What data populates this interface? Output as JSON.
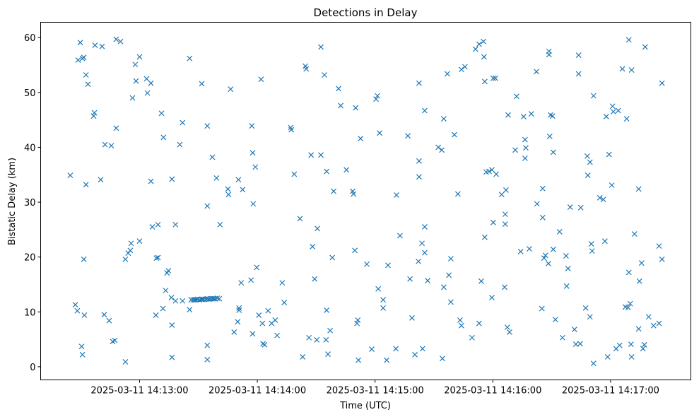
{
  "chart_data": {
    "type": "scatter",
    "title": "Detections in Delay",
    "xlabel": "Time (UTC)",
    "ylabel": "Bistatic Delay (km)",
    "x_unit": "seconds relative to 2025-03-11 14:13:00",
    "xlim": [
      -50.4,
      280.9
    ],
    "ylim": [
      -2.4,
      62.8
    ],
    "grid": false,
    "marker": "x",
    "color": "#1f77b4",
    "x_ticks": [
      {
        "value": 0,
        "label": "2025-03-11 14:13:00"
      },
      {
        "value": 60,
        "label": "2025-03-11 14:14:00"
      },
      {
        "value": 120,
        "label": "2025-03-11 14:15:00"
      },
      {
        "value": 180,
        "label": "2025-03-11 14:16:00"
      },
      {
        "value": 240,
        "label": "2025-03-11 14:17:00"
      }
    ],
    "y_ticks": [
      {
        "value": 0,
        "label": "0"
      },
      {
        "value": 10,
        "label": "10"
      },
      {
        "value": 20,
        "label": "20"
      },
      {
        "value": 30,
        "label": "30"
      },
      {
        "value": 40,
        "label": "40"
      },
      {
        "value": 50,
        "label": "50"
      },
      {
        "value": 60,
        "label": "60"
      }
    ],
    "points": [
      [
        -35.3,
        34.9
      ],
      [
        -32.7,
        11.3
      ],
      [
        -31.7,
        10.2
      ],
      [
        -30.2,
        59.1
      ],
      [
        -31.3,
        55.9
      ],
      [
        -29.1,
        56.2
      ],
      [
        -28.4,
        56.4
      ],
      [
        -29.5,
        3.7
      ],
      [
        -29.1,
        2.2
      ],
      [
        -28.1,
        9.4
      ],
      [
        -28.4,
        19.6
      ],
      [
        -27.3,
        53.2
      ],
      [
        -27.3,
        33.2
      ],
      [
        -26.3,
        51.5
      ],
      [
        -23.4,
        45.7
      ],
      [
        -23.0,
        46.3
      ],
      [
        -22.7,
        58.6
      ],
      [
        -19.8,
        34.1
      ],
      [
        -19.1,
        58.4
      ],
      [
        -18.0,
        9.5
      ],
      [
        -17.6,
        40.5
      ],
      [
        -15.5,
        8.4
      ],
      [
        -14.4,
        40.3
      ],
      [
        -13.7,
        4.6
      ],
      [
        -12.6,
        4.8
      ],
      [
        -11.9,
        43.5
      ],
      [
        -11.9,
        59.7
      ],
      [
        -9.7,
        59.3
      ],
      [
        -7.2,
        0.9
      ],
      [
        -7.2,
        19.6
      ],
      [
        -5.8,
        20.7
      ],
      [
        -4.7,
        21.2
      ],
      [
        -4.3,
        22.5
      ],
      [
        -3.6,
        49.0
      ],
      [
        -2.2,
        55.1
      ],
      [
        -1.8,
        52.1
      ],
      [
        0,
        56.5
      ],
      [
        0,
        22.9
      ],
      [
        3.6,
        52.5
      ],
      [
        4.0,
        49.9
      ],
      [
        5.8,
        51.7
      ],
      [
        5.8,
        33.8
      ],
      [
        6.5,
        25.5
      ],
      [
        8.3,
        9.4
      ],
      [
        8.6,
        19.8
      ],
      [
        9.4,
        19.9
      ],
      [
        9.4,
        25.9
      ],
      [
        11.2,
        46.2
      ],
      [
        11.9,
        10.6
      ],
      [
        12.2,
        41.8
      ],
      [
        13.3,
        13.9
      ],
      [
        14.0,
        17.1
      ],
      [
        14.7,
        17.5
      ],
      [
        16.2,
        12.6
      ],
      [
        16.5,
        7.6
      ],
      [
        16.5,
        1.7
      ],
      [
        16.5,
        34.2
      ],
      [
        18.3,
        25.9
      ],
      [
        18.3,
        12.0
      ],
      [
        20.5,
        40.5
      ],
      [
        21.9,
        44.5
      ],
      [
        21.9,
        12.0
      ],
      [
        25.5,
        56.2
      ],
      [
        25.5,
        10.4
      ],
      [
        26.3,
        12.2
      ],
      [
        27.3,
        12.2
      ],
      [
        28.1,
        12.2
      ],
      [
        28.8,
        12.2
      ],
      [
        29.5,
        12.3
      ],
      [
        30.6,
        12.2
      ],
      [
        31.3,
        12.3
      ],
      [
        32.0,
        12.3
      ],
      [
        32.7,
        12.3
      ],
      [
        33.8,
        12.3
      ],
      [
        34.5,
        12.4
      ],
      [
        35.3,
        12.3
      ],
      [
        36.0,
        12.4
      ],
      [
        37.0,
        12.4
      ],
      [
        37.8,
        12.4
      ],
      [
        38.5,
        12.4
      ],
      [
        39.6,
        12.5
      ],
      [
        40.6,
        12.4
      ],
      [
        31.7,
        51.6
      ],
      [
        34.5,
        43.9
      ],
      [
        34.5,
        29.3
      ],
      [
        34.5,
        3.9
      ],
      [
        34.5,
        1.3
      ],
      [
        37.1,
        38.2
      ],
      [
        39.2,
        34.4
      ],
      [
        41.0,
        25.9
      ],
      [
        45.0,
        32.4
      ],
      [
        45.3,
        31.4
      ],
      [
        46.4,
        50.6
      ],
      [
        48.2,
        6.3
      ],
      [
        50.0,
        8.2
      ],
      [
        50.4,
        34.1
      ],
      [
        50.7,
        10.7
      ],
      [
        50.7,
        10.3
      ],
      [
        51.8,
        15.3
      ],
      [
        52.5,
        32.3
      ],
      [
        56.8,
        15.8
      ],
      [
        57.2,
        43.9
      ],
      [
        57.6,
        39.0
      ],
      [
        57.6,
        6.0
      ],
      [
        57.9,
        29.7
      ],
      [
        59.0,
        36.4
      ],
      [
        59.7,
        18.1
      ],
      [
        60.8,
        9.4
      ],
      [
        61.9,
        52.4
      ],
      [
        62.6,
        7.9
      ],
      [
        62.9,
        4.2
      ],
      [
        63.7,
        4.0
      ],
      [
        65.5,
        10.2
      ],
      [
        67.3,
        7.9
      ],
      [
        69.1,
        8.5
      ],
      [
        70.1,
        5.7
      ],
      [
        72.7,
        15.3
      ],
      [
        73.7,
        11.7
      ],
      [
        77.0,
        43.6
      ],
      [
        77.3,
        43.2
      ],
      [
        78.8,
        35.1
      ],
      [
        81.7,
        27.0
      ],
      [
        83.1,
        1.8
      ],
      [
        84.5,
        54.8
      ],
      [
        84.9,
        54.3
      ],
      [
        86.3,
        5.3
      ],
      [
        87.4,
        38.6
      ],
      [
        88.1,
        21.9
      ],
      [
        89.2,
        16.0
      ],
      [
        90.3,
        4.9
      ],
      [
        90.6,
        25.2
      ],
      [
        92.4,
        38.6
      ],
      [
        92.4,
        58.3
      ],
      [
        94.2,
        53.2
      ],
      [
        95.0,
        4.9
      ],
      [
        95.3,
        35.6
      ],
      [
        95.3,
        10.3
      ],
      [
        96.0,
        2.3
      ],
      [
        97.1,
        6.6
      ],
      [
        98.2,
        19.9
      ],
      [
        98.9,
        32.0
      ],
      [
        101.4,
        50.7
      ],
      [
        102.5,
        47.6
      ],
      [
        105.4,
        35.9
      ],
      [
        108.6,
        32.0
      ],
      [
        109.0,
        31.5
      ],
      [
        109.7,
        21.2
      ],
      [
        110.1,
        47.2
      ],
      [
        110.8,
        7.9
      ],
      [
        111.2,
        8.5
      ],
      [
        111.5,
        1.2
      ],
      [
        112.6,
        41.6
      ],
      [
        115.8,
        18.7
      ],
      [
        118.3,
        3.2
      ],
      [
        120.5,
        48.8
      ],
      [
        121.2,
        49.4
      ],
      [
        121.6,
        14.2
      ],
      [
        122.3,
        42.6
      ],
      [
        124.1,
        10.7
      ],
      [
        124.1,
        12.2
      ],
      [
        125.9,
        1.2
      ],
      [
        126.6,
        18.5
      ],
      [
        130.6,
        3.3
      ],
      [
        130.9,
        31.3
      ],
      [
        132.7,
        23.9
      ],
      [
        136.7,
        42.1
      ],
      [
        137.8,
        16.0
      ],
      [
        138.8,
        8.9
      ],
      [
        140.3,
        2.2
      ],
      [
        142.1,
        19.2
      ],
      [
        142.4,
        51.7
      ],
      [
        142.4,
        37.5
      ],
      [
        142.4,
        34.6
      ],
      [
        143.9,
        22.5
      ],
      [
        144.2,
        3.3
      ],
      [
        145.3,
        46.7
      ],
      [
        145.3,
        25.5
      ],
      [
        145.3,
        20.8
      ],
      [
        146.8,
        15.7
      ],
      [
        152.2,
        40.0
      ],
      [
        154.0,
        39.5
      ],
      [
        154.3,
        1.5
      ],
      [
        155.0,
        14.5
      ],
      [
        155.0,
        45.2
      ],
      [
        156.8,
        53.4
      ],
      [
        157.6,
        16.7
      ],
      [
        158.6,
        19.7
      ],
      [
        158.6,
        11.8
      ],
      [
        160.4,
        42.3
      ],
      [
        162.2,
        31.5
      ],
      [
        163.3,
        8.5
      ],
      [
        164.0,
        7.5
      ],
      [
        164.0,
        54.2
      ],
      [
        165.8,
        54.7
      ],
      [
        169.4,
        5.3
      ],
      [
        171.2,
        57.9
      ],
      [
        173.0,
        58.8
      ],
      [
        173.0,
        7.9
      ],
      [
        174.1,
        15.6
      ],
      [
        175.2,
        59.3
      ],
      [
        175.5,
        56.5
      ],
      [
        175.9,
        52.0
      ],
      [
        175.9,
        23.6
      ],
      [
        176.6,
        35.5
      ],
      [
        178.1,
        35.6
      ],
      [
        179.5,
        35.9
      ],
      [
        179.5,
        12.6
      ],
      [
        180.2,
        52.6
      ],
      [
        181.3,
        52.6
      ],
      [
        181.7,
        35.1
      ],
      [
        180.2,
        26.3
      ],
      [
        184.5,
        31.4
      ],
      [
        186.0,
        14.5
      ],
      [
        186.3,
        26.0
      ],
      [
        186.3,
        27.8
      ],
      [
        186.7,
        32.2
      ],
      [
        187.4,
        7.2
      ],
      [
        187.8,
        45.9
      ],
      [
        188.5,
        6.3
      ],
      [
        191.4,
        39.5
      ],
      [
        192.1,
        49.3
      ],
      [
        194.2,
        21.0
      ],
      [
        195.7,
        45.6
      ],
      [
        196.4,
        38.0
      ],
      [
        196.4,
        41.4
      ],
      [
        196.8,
        39.9
      ],
      [
        198.6,
        21.5
      ],
      [
        199.6,
        46.1
      ],
      [
        202.2,
        53.8
      ],
      [
        202.5,
        29.7
      ],
      [
        205.0,
        10.6
      ],
      [
        205.4,
        32.5
      ],
      [
        205.4,
        27.2
      ],
      [
        206.1,
        19.8
      ],
      [
        206.8,
        20.3
      ],
      [
        208.3,
        18.8
      ],
      [
        208.6,
        57.5
      ],
      [
        208.6,
        56.9
      ],
      [
        209.0,
        42.0
      ],
      [
        209.4,
        45.9
      ],
      [
        210.4,
        45.7
      ],
      [
        210.8,
        39.1
      ],
      [
        210.8,
        21.4
      ],
      [
        211.9,
        8.6
      ],
      [
        214.0,
        24.6
      ],
      [
        215.5,
        5.3
      ],
      [
        217.3,
        20.2
      ],
      [
        218.3,
        17.9
      ],
      [
        217.6,
        14.7
      ],
      [
        219.4,
        29.1
      ],
      [
        221.6,
        6.8
      ],
      [
        222.3,
        4.1
      ],
      [
        223.7,
        53.4
      ],
      [
        223.7,
        56.8
      ],
      [
        224.5,
        4.2
      ],
      [
        224.8,
        29.0
      ],
      [
        227.3,
        10.7
      ],
      [
        228.1,
        38.4
      ],
      [
        228.4,
        34.9
      ],
      [
        229.5,
        9.1
      ],
      [
        229.5,
        37.3
      ],
      [
        230.2,
        22.4
      ],
      [
        230.6,
        21.1
      ],
      [
        231.3,
        49.4
      ],
      [
        231.3,
        0.6
      ],
      [
        234.5,
        30.8
      ],
      [
        236.3,
        30.5
      ],
      [
        237.1,
        22.9
      ],
      [
        237.8,
        45.6
      ],
      [
        238.5,
        1.8
      ],
      [
        239.2,
        38.7
      ],
      [
        240.6,
        33.1
      ],
      [
        241.0,
        47.5
      ],
      [
        241.4,
        46.5
      ],
      [
        242.8,
        3.3
      ],
      [
        243.9,
        46.7
      ],
      [
        244.6,
        3.9
      ],
      [
        246.0,
        54.3
      ],
      [
        247.5,
        10.9
      ],
      [
        248.9,
        10.8
      ],
      [
        248.2,
        45.2
      ],
      [
        249.3,
        59.6
      ],
      [
        249.3,
        17.2
      ],
      [
        250.0,
        11.5
      ],
      [
        250.4,
        4.1
      ],
      [
        250.7,
        1.8
      ],
      [
        250.7,
        54.1
      ],
      [
        252.2,
        24.2
      ],
      [
        254.3,
        32.4
      ],
      [
        254.3,
        6.9
      ],
      [
        254.7,
        15.6
      ],
      [
        255.8,
        18.9
      ],
      [
        256.5,
        3.3
      ],
      [
        257.2,
        4.0
      ],
      [
        257.6,
        58.3
      ],
      [
        259.4,
        9.1
      ],
      [
        261.9,
        7.5
      ],
      [
        264.7,
        7.9
      ],
      [
        264.7,
        22.0
      ],
      [
        266.2,
        19.6
      ],
      [
        266.2,
        51.7
      ]
    ]
  }
}
